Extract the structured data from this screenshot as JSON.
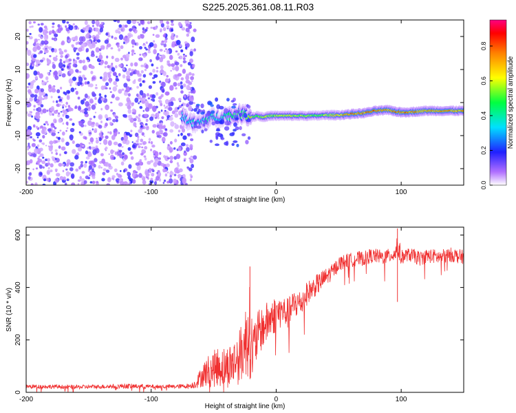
{
  "title": "S225.2025.361.08.11.R03",
  "chart_data": [
    {
      "type": "heatmap",
      "xlabel": "Height of straight line (km)",
      "ylabel": "Frequency (Hz)",
      "xlim": [
        -200,
        150
      ],
      "ylim": [
        -25,
        25
      ],
      "xticks": [
        -200,
        -100,
        0,
        100
      ],
      "yticks": [
        -20,
        -10,
        0,
        10,
        20
      ],
      "noise_region_x": [
        -200,
        -65
      ],
      "signal_track": {
        "x": [
          -75,
          -70,
          -65,
          -60,
          -55,
          -50,
          -45,
          -40,
          -35,
          -30,
          -25,
          -20,
          -15,
          -10,
          -5,
          0,
          10,
          20,
          30,
          40,
          50,
          60,
          70,
          80,
          90,
          100,
          110,
          120,
          130,
          140,
          150
        ],
        "freq": [
          -4,
          -5.5,
          -6.5,
          -6,
          -5,
          -4.5,
          -4.5,
          -4,
          -4,
          -3.5,
          -3.5,
          -4.5,
          -4,
          -4.5,
          -4,
          -4,
          -4,
          -4,
          -4,
          -3.8,
          -3.8,
          -3.5,
          -3.2,
          -2.5,
          -2.3,
          -3,
          -2.8,
          -2.5,
          -2.5,
          -2.5,
          -2.5
        ],
        "amplitude": [
          0.35,
          0.4,
          0.4,
          0.35,
          0.45,
          0.4,
          0.35,
          0.45,
          0.5,
          0.5,
          0.55,
          0.7,
          0.5,
          0.7,
          0.55,
          0.6,
          0.65,
          0.6,
          0.55,
          0.6,
          0.7,
          0.85,
          0.8,
          0.85,
          0.8,
          0.85,
          0.8,
          0.75,
          0.75,
          0.8,
          0.75
        ]
      },
      "colorbar": {
        "label": "Normalized spectral amplitude",
        "range": [
          0.0,
          0.95
        ],
        "ticks": [
          0.0,
          0.2,
          0.4,
          0.6,
          0.8
        ],
        "tick_labels": [
          "0.0",
          "0.2",
          "0.4",
          "0.6",
          "0.8"
        ]
      }
    },
    {
      "type": "line",
      "xlabel": "Height of straight line (km)",
      "ylabel": "SNR (10 * v/v)",
      "xlim": [
        -200,
        150
      ],
      "ylim": [
        0,
        630
      ],
      "xticks": [
        -200,
        -100,
        0,
        100
      ],
      "yticks": [
        0,
        200,
        400,
        600
      ],
      "line_color": "#f03030",
      "series": [
        {
          "name": "SNR",
          "x": [
            -200,
            -180,
            -160,
            -140,
            -120,
            -100,
            -80,
            -68,
            -64,
            -60,
            -55,
            -50,
            -45,
            -40,
            -35,
            -30,
            -25,
            -22,
            -20,
            -18,
            -15,
            -10,
            -5,
            0,
            5,
            10,
            15,
            20,
            25,
            30,
            35,
            40,
            45,
            50,
            55,
            60,
            65,
            70,
            75,
            80,
            85,
            90,
            95,
            97,
            100,
            105,
            110,
            115,
            120,
            125,
            130,
            135,
            140,
            145,
            150
          ],
          "y": [
            22,
            22,
            20,
            22,
            24,
            22,
            22,
            25,
            35,
            60,
            80,
            90,
            100,
            95,
            110,
            130,
            180,
            260,
            180,
            160,
            220,
            250,
            280,
            300,
            310,
            300,
            340,
            340,
            380,
            400,
            420,
            440,
            460,
            490,
            500,
            505,
            510,
            510,
            520,
            520,
            515,
            520,
            530,
            560,
            515,
            525,
            520,
            510,
            520,
            520,
            515,
            520,
            525,
            520,
            515
          ],
          "spread": [
            8,
            8,
            8,
            8,
            10,
            8,
            8,
            10,
            20,
            40,
            60,
            70,
            80,
            80,
            90,
            100,
            130,
            200,
            140,
            120,
            90,
            80,
            80,
            70,
            60,
            60,
            60,
            50,
            45,
            40,
            40,
            35,
            30,
            28,
            28,
            28,
            28,
            28,
            28,
            28,
            28,
            28,
            30,
            60,
            28,
            25,
            28,
            28,
            28,
            28,
            28,
            28,
            28,
            28,
            28
          ]
        }
      ],
      "annotations_spikes": [
        {
          "x": -21,
          "y": 480
        },
        {
          "x": 97,
          "y": 625
        },
        {
          "x": 97,
          "y": 345
        }
      ]
    }
  ]
}
